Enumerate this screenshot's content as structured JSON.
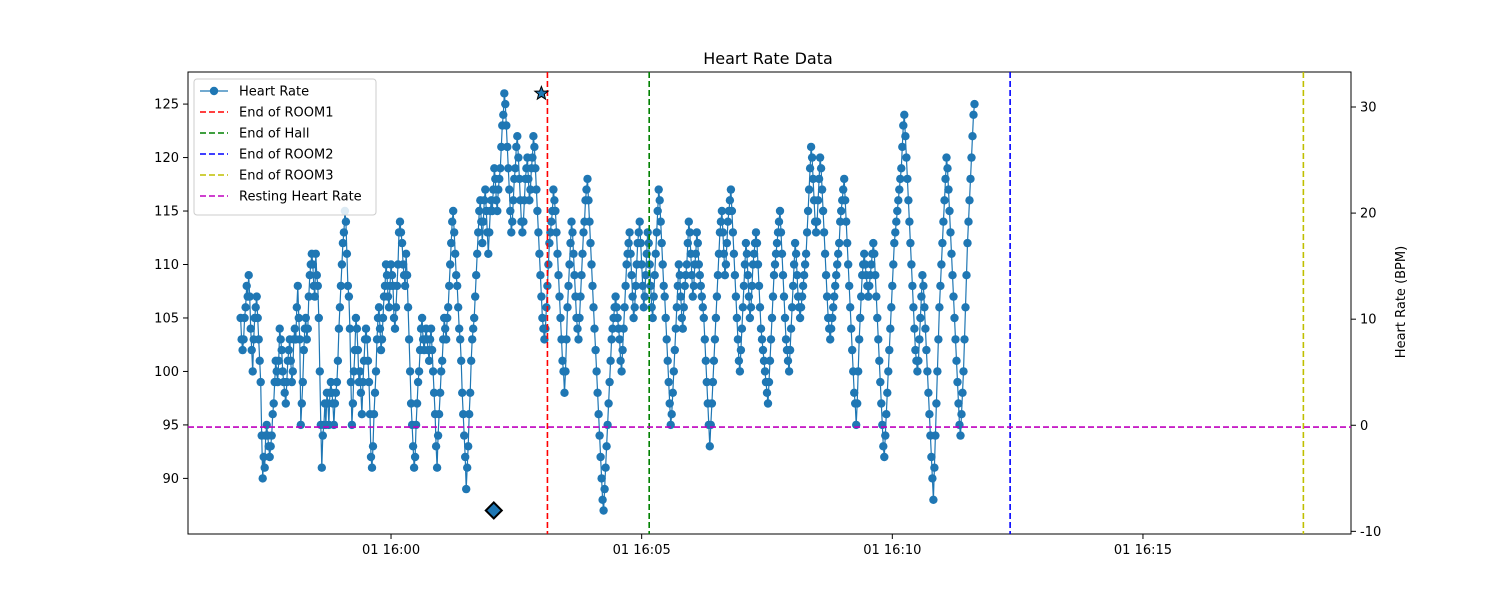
{
  "chart_data": {
    "type": "line",
    "title": "Heart Rate Data",
    "xlabel": "",
    "ylabel": "",
    "y2label": "Heart Rate (BPM)",
    "x_ticks": [
      "01 16:00",
      "01 16:05",
      "01 16:10",
      "01 16:15"
    ],
    "x_tick_minutes": [
      0,
      5,
      10,
      15
    ],
    "xlim_minutes": [
      -4.05,
      19.15
    ],
    "ylim": [
      84.8,
      128
    ],
    "y_ticks": [
      90,
      95,
      100,
      105,
      110,
      115,
      120,
      125
    ],
    "y2lim": [
      -10.25,
      33.3
    ],
    "y2_ticks": [
      -10,
      0,
      10,
      20,
      30
    ],
    "legend_placement": "upper-left",
    "grid": false,
    "series": [
      {
        "name": "Heart Rate",
        "color": "#1f77b4",
        "x_minutes_start": -3.0,
        "x_minutes_step": 0.02,
        "values": [
          105,
          103,
          102,
          103,
          105,
          106,
          108,
          107,
          109,
          107,
          104,
          102,
          100,
          103,
          105,
          106,
          107,
          105,
          103,
          101,
          99,
          94,
          90,
          92,
          91,
          94,
          95,
          94,
          93,
          92,
          93,
          94,
          96,
          97,
          99,
          101,
          100,
          99,
          101,
          104,
          103,
          102,
          100,
          99,
          98,
          97,
          99,
          101,
          102,
          103,
          101,
          99,
          100,
          103,
          104,
          103,
          106,
          108,
          105,
          103,
          95,
          97,
          99,
          102,
          104,
          105,
          103,
          104,
          107,
          109,
          110,
          111,
          110,
          108,
          107,
          111,
          109,
          108,
          105,
          100,
          95,
          91,
          94,
          95,
          97,
          95,
          98,
          97,
          95,
          98,
          99,
          98,
          97,
          95,
          97,
          98,
          99,
          101,
          104,
          106,
          108,
          110,
          112,
          113,
          115,
          114,
          111,
          108,
          107,
          104,
          99,
          95,
          97,
          100,
          102,
          105,
          104,
          102,
          99,
          100,
          98,
          96,
          99,
          101,
          103,
          104,
          103,
          101,
          99,
          96,
          92,
          91,
          93,
          96,
          98,
          100,
          103,
          105,
          106,
          104,
          102,
          103,
          105,
          107,
          108,
          110,
          109,
          107,
          106,
          108,
          110,
          109,
          108,
          105,
          104,
          106,
          108,
          110,
          113,
          114,
          113,
          112,
          110,
          109,
          108,
          111,
          109,
          106,
          103,
          100,
          97,
          95,
          93,
          91,
          92,
          95,
          97,
          99,
          100,
          102,
          104,
          105,
          103,
          102,
          103,
          104,
          103,
          102,
          101,
          103,
          104,
          102,
          100,
          98,
          96,
          93,
          91,
          94,
          96,
          98,
          100,
          101,
          103,
          105,
          104,
          103,
          105,
          106,
          108,
          110,
          112,
          114,
          115,
          113,
          111,
          109,
          108,
          106,
          104,
          103,
          101,
          98,
          96,
          94,
          92,
          89,
          91,
          93,
          96,
          98,
          101,
          103,
          104,
          105,
          107,
          109,
          111,
          113,
          115,
          116,
          114,
          112,
          114,
          116,
          117,
          115,
          113,
          111,
          113,
          115,
          116,
          115,
          117,
          119,
          118,
          116,
          115,
          117,
          118,
          119,
          121,
          123,
          124,
          126,
          125,
          123,
          121,
          119,
          117,
          115,
          113,
          114,
          116,
          118,
          119,
          121,
          122,
          120,
          118,
          116,
          114,
          113,
          114,
          116,
          118,
          119,
          120,
          118,
          116,
          117,
          119,
          120,
          122,
          121,
          119,
          117,
          115,
          113,
          111,
          109,
          107,
          105,
          104,
          103,
          104,
          106,
          108,
          110,
          112,
          113,
          114,
          115,
          117,
          116,
          115,
          113,
          111,
          109,
          107,
          105,
          103,
          101,
          100,
          98,
          100,
          103,
          106,
          108,
          110,
          112,
          114,
          113,
          111,
          109,
          107,
          105,
          104,
          103,
          105,
          107,
          109,
          111,
          113,
          114,
          116,
          117,
          118,
          116,
          114,
          112,
          110,
          108,
          106,
          104,
          102,
          100,
          98,
          96,
          94,
          92,
          90,
          88,
          87,
          89,
          91,
          93,
          95,
          97,
          99,
          101,
          103,
          104,
          105,
          106,
          107,
          106,
          105,
          104,
          103,
          101,
          100,
          102,
          104,
          106,
          108,
          110,
          111,
          112,
          113,
          111,
          109,
          107,
          105,
          106,
          108,
          110,
          112,
          113,
          114,
          112,
          110,
          108,
          106,
          107,
          109,
          111,
          113,
          112,
          110,
          108,
          106,
          105,
          107,
          109,
          111,
          113,
          115,
          117,
          116,
          114,
          112,
          110,
          108,
          107,
          105,
          103,
          101,
          99,
          97,
          95,
          96,
          98,
          100,
          102,
          104,
          106,
          108,
          110,
          109,
          107,
          105,
          104,
          106,
          108,
          109,
          110,
          112,
          114,
          113,
          111,
          109,
          107,
          108,
          110,
          111,
          113,
          112,
          110,
          109,
          108,
          107,
          106,
          105,
          103,
          101,
          99,
          97,
          95,
          93,
          95,
          97,
          99,
          101,
          103,
          105,
          107,
          109,
          111,
          113,
          114,
          115,
          113,
          111,
          109,
          110,
          112,
          114,
          115,
          116,
          117,
          115,
          113,
          111,
          109,
          107,
          105,
          103,
          101,
          100,
          102,
          104,
          106,
          108,
          110,
          112,
          111,
          109,
          107,
          105,
          106,
          108,
          110,
          111,
          112,
          113,
          112,
          110,
          108,
          106,
          104,
          103,
          102,
          101,
          100,
          99,
          98,
          97,
          99,
          101,
          103,
          105,
          107,
          109,
          110,
          111,
          112,
          113,
          114,
          115,
          113,
          111,
          109,
          107,
          105,
          103,
          102,
          101,
          100,
          102,
          104,
          106,
          108,
          110,
          112,
          111,
          109,
          107,
          106,
          105,
          106,
          107,
          108,
          109,
          110,
          111,
          113,
          115,
          117,
          119,
          121,
          120,
          118,
          116,
          114,
          113,
          114,
          116,
          118,
          120,
          119,
          117,
          115,
          113,
          111,
          109,
          107,
          105,
          104,
          103,
          104,
          105,
          106,
          107,
          108,
          109,
          110,
          111,
          112,
          114,
          115,
          116,
          117,
          118,
          116,
          114,
          112,
          110,
          108,
          106,
          104,
          102,
          100,
          98,
          97,
          95,
          97,
          100,
          103,
          105,
          107,
          109,
          110,
          111,
          110,
          109,
          108,
          107,
          108,
          109,
          110,
          111,
          112,
          111,
          109,
          107,
          105,
          103,
          101,
          99,
          97,
          95,
          93,
          92,
          94,
          96,
          98,
          100,
          102,
          104,
          106,
          108,
          110,
          112,
          113,
          114,
          115,
          116,
          117,
          118,
          119,
          121,
          123,
          124,
          122,
          120,
          118,
          116,
          114,
          112,
          110,
          108,
          106,
          104,
          102,
          101,
          100,
          101,
          103,
          105,
          107,
          109,
          108,
          106,
          104,
          102,
          100,
          98,
          96,
          94,
          92,
          90,
          88,
          91,
          94,
          97,
          100,
          103,
          106,
          108,
          110,
          112,
          114,
          116,
          118,
          120,
          119,
          117,
          115,
          113,
          111,
          109,
          107,
          105,
          103,
          101,
          99,
          97,
          95,
          94,
          96,
          98,
          100,
          103,
          106,
          109,
          112,
          114,
          116,
          118,
          120,
          122,
          124,
          125
        ]
      },
      {
        "name": "End of ROOM1",
        "color": "#ff0000",
        "x_minutes": 3.12,
        "style": "dashed vertical"
      },
      {
        "name": "End of Hall",
        "color": "#008000",
        "x_minutes": 5.15,
        "style": "dashed vertical"
      },
      {
        "name": "End of ROOM2",
        "color": "#0000ff",
        "x_minutes": 12.35,
        "style": "dashed vertical"
      },
      {
        "name": "End of ROOM3",
        "color": "#bfbf00",
        "x_minutes": 18.2,
        "style": "dashed vertical"
      },
      {
        "name": "Resting Heart Rate",
        "color": "#bf00bf",
        "y_value": 94.8,
        "style": "dashed horizontal"
      }
    ],
    "markers": [
      {
        "kind": "star",
        "x_minutes": 3.0,
        "y": 126
      },
      {
        "kind": "diamond",
        "x_minutes": 2.05,
        "y": 87
      }
    ]
  }
}
